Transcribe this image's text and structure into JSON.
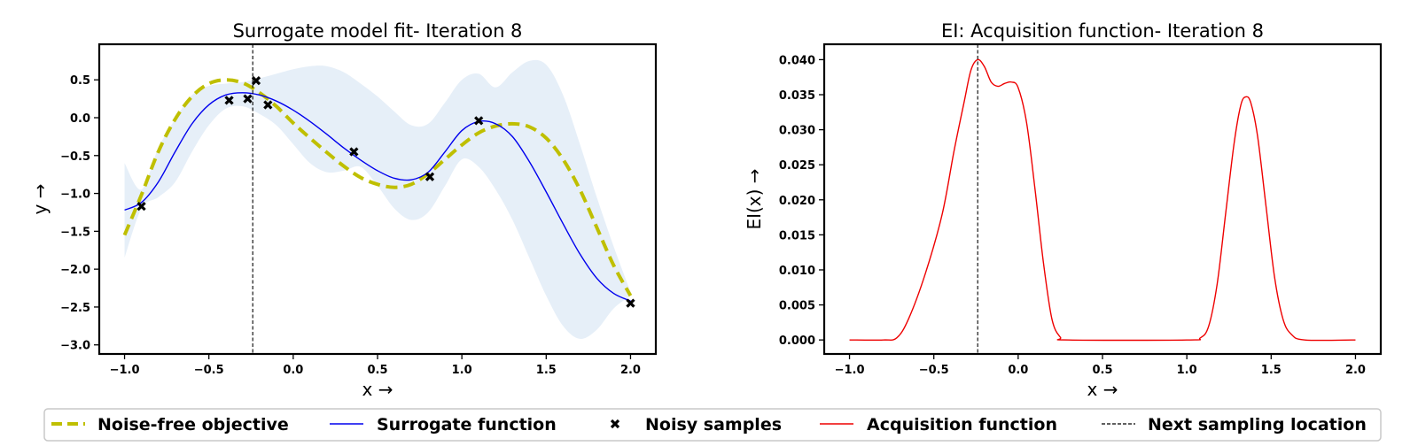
{
  "legend": {
    "items": [
      {
        "label": "Noise-free objective",
        "style": "dashed-thick",
        "color": "#bfbf00"
      },
      {
        "label": "Surrogate function",
        "style": "line",
        "color": "#0000ee"
      },
      {
        "label": "Noisy samples",
        "style": "x-marker",
        "color": "#000000"
      },
      {
        "label": "Acquisition function",
        "style": "line",
        "color": "#ee0000"
      },
      {
        "label": "Next sampling location",
        "style": "dashed-thin",
        "color": "#000000"
      }
    ]
  },
  "chart_data": [
    {
      "type": "line",
      "title": "Surrogate model fit- Iteration 8",
      "xlabel": "x →",
      "ylabel": "y →",
      "xlim": [
        -1.15,
        2.15
      ],
      "ylim": [
        -3.12,
        0.97
      ],
      "xticks": [
        -1.0,
        -0.5,
        0.0,
        0.5,
        1.0,
        1.5,
        2.0
      ],
      "xtick_labels": [
        "−1.0",
        "−0.5",
        "0.0",
        "0.5",
        "1.0",
        "1.5",
        "2.0"
      ],
      "yticks": [
        0.5,
        0.0,
        -0.5,
        -1.0,
        -1.5,
        -2.0,
        -2.5,
        -3.0
      ],
      "ytick_labels": [
        "0.5",
        "0.0",
        "−0.5",
        "−1.0",
        "−1.5",
        "−2.0",
        "−2.5",
        "−3.0"
      ],
      "next_sampling_x": -0.24,
      "colors": {
        "objective": "#bfbf00",
        "surrogate": "#0000ee",
        "band": "#e6eff8"
      },
      "objective": {
        "x": [
          -1.0,
          -0.9,
          -0.8,
          -0.7,
          -0.6,
          -0.5,
          -0.4,
          -0.3,
          -0.2,
          -0.1,
          0.0,
          0.1,
          0.2,
          0.3,
          0.4,
          0.5,
          0.6,
          0.7,
          0.8,
          0.9,
          1.0,
          1.1,
          1.2,
          1.3,
          1.4,
          1.5,
          1.6,
          1.7,
          1.8,
          1.9,
          2.0
        ],
        "y": [
          -1.55,
          -1.02,
          -0.45,
          -0.02,
          0.28,
          0.45,
          0.5,
          0.46,
          0.33,
          0.15,
          -0.07,
          -0.27,
          -0.46,
          -0.64,
          -0.79,
          -0.88,
          -0.92,
          -0.88,
          -0.74,
          -0.55,
          -0.36,
          -0.2,
          -0.11,
          -0.08,
          -0.12,
          -0.27,
          -0.55,
          -0.95,
          -1.45,
          -1.95,
          -2.35
        ]
      },
      "surrogate": {
        "x": [
          -1.0,
          -0.9,
          -0.8,
          -0.7,
          -0.6,
          -0.5,
          -0.4,
          -0.3,
          -0.2,
          -0.1,
          0.0,
          0.1,
          0.2,
          0.3,
          0.4,
          0.5,
          0.6,
          0.7,
          0.8,
          0.9,
          1.0,
          1.1,
          1.2,
          1.3,
          1.4,
          1.5,
          1.6,
          1.7,
          1.8,
          1.9,
          2.0
        ],
        "y": [
          -1.22,
          -1.12,
          -0.85,
          -0.45,
          -0.08,
          0.17,
          0.3,
          0.33,
          0.3,
          0.22,
          0.1,
          -0.05,
          -0.22,
          -0.4,
          -0.56,
          -0.7,
          -0.8,
          -0.82,
          -0.72,
          -0.45,
          -0.17,
          -0.05,
          -0.08,
          -0.25,
          -0.58,
          -0.98,
          -1.4,
          -1.8,
          -2.12,
          -2.32,
          -2.42
        ]
      },
      "band": {
        "x": [
          -1.0,
          -0.9,
          -0.8,
          -0.7,
          -0.6,
          -0.5,
          -0.4,
          -0.3,
          -0.2,
          -0.1,
          0.0,
          0.1,
          0.2,
          0.3,
          0.4,
          0.5,
          0.6,
          0.7,
          0.8,
          0.9,
          1.0,
          1.1,
          1.2,
          1.3,
          1.4,
          1.5,
          1.6,
          1.7,
          1.8,
          1.9,
          2.0
        ],
        "lower": [
          -1.85,
          -1.2,
          -1.05,
          -0.85,
          -0.45,
          -0.1,
          0.12,
          0.15,
          0.05,
          -0.1,
          -0.35,
          -0.6,
          -0.72,
          -0.7,
          -0.65,
          -0.9,
          -1.2,
          -1.35,
          -1.25,
          -0.9,
          -0.55,
          -0.65,
          -0.95,
          -1.35,
          -1.85,
          -2.35,
          -2.75,
          -2.92,
          -2.8,
          -2.52,
          -2.35
        ],
        "upper": [
          -0.6,
          -0.95,
          -0.4,
          -0.02,
          0.3,
          0.42,
          0.45,
          0.47,
          0.52,
          0.58,
          0.64,
          0.68,
          0.68,
          0.6,
          0.45,
          0.28,
          0.08,
          -0.1,
          -0.08,
          0.2,
          0.5,
          0.58,
          0.4,
          0.6,
          0.75,
          0.7,
          0.3,
          -0.35,
          -1.05,
          -1.7,
          -2.3
        ]
      },
      "samples": {
        "x": [
          -0.9,
          -0.38,
          -0.27,
          -0.22,
          -0.15,
          0.36,
          0.81,
          1.1,
          2.0
        ],
        "y": [
          -1.17,
          0.23,
          0.25,
          0.49,
          0.17,
          -0.45,
          -0.78,
          -0.04,
          -2.45
        ]
      }
    },
    {
      "type": "line",
      "title": "EI: Acquisition function- Iteration 8",
      "xlabel": "x →",
      "ylabel": "EI(x) →",
      "xlim": [
        -1.15,
        2.15
      ],
      "ylim": [
        -0.002,
        0.0422
      ],
      "xticks": [
        -1.0,
        -0.5,
        0.0,
        0.5,
        1.0,
        1.5,
        2.0
      ],
      "xtick_labels": [
        "−1.0",
        "−0.5",
        "0.0",
        "0.5",
        "1.0",
        "1.5",
        "2.0"
      ],
      "yticks": [
        0.04,
        0.035,
        0.03,
        0.025,
        0.02,
        0.015,
        0.01,
        0.005,
        0.0
      ],
      "ytick_labels": [
        "0.040",
        "0.035",
        "0.030",
        "0.025",
        "0.020",
        "0.015",
        "0.010",
        "0.005",
        "0.000"
      ],
      "next_sampling_x": -0.24,
      "colors": {
        "acquisition": "#ee0000"
      },
      "acquisition": {
        "x": [
          -1.0,
          -0.8,
          -0.72,
          -0.65,
          -0.55,
          -0.45,
          -0.38,
          -0.32,
          -0.28,
          -0.24,
          -0.2,
          -0.16,
          -0.12,
          -0.08,
          -0.04,
          0.0,
          0.05,
          0.1,
          0.15,
          0.2,
          0.25,
          0.3,
          1.0,
          1.08,
          1.13,
          1.18,
          1.23,
          1.28,
          1.32,
          1.35,
          1.38,
          1.42,
          1.47,
          1.52,
          1.57,
          1.62,
          1.7,
          2.0
        ],
        "y": [
          0.0,
          0.0,
          0.0003,
          0.003,
          0.0095,
          0.018,
          0.027,
          0.034,
          0.0385,
          0.04,
          0.039,
          0.0368,
          0.0362,
          0.0366,
          0.0368,
          0.036,
          0.031,
          0.0215,
          0.011,
          0.003,
          0.0004,
          0.0,
          0.0,
          0.0003,
          0.002,
          0.008,
          0.018,
          0.028,
          0.0335,
          0.0347,
          0.0338,
          0.029,
          0.019,
          0.009,
          0.003,
          0.0008,
          0.0,
          0.0
        ]
      }
    }
  ]
}
